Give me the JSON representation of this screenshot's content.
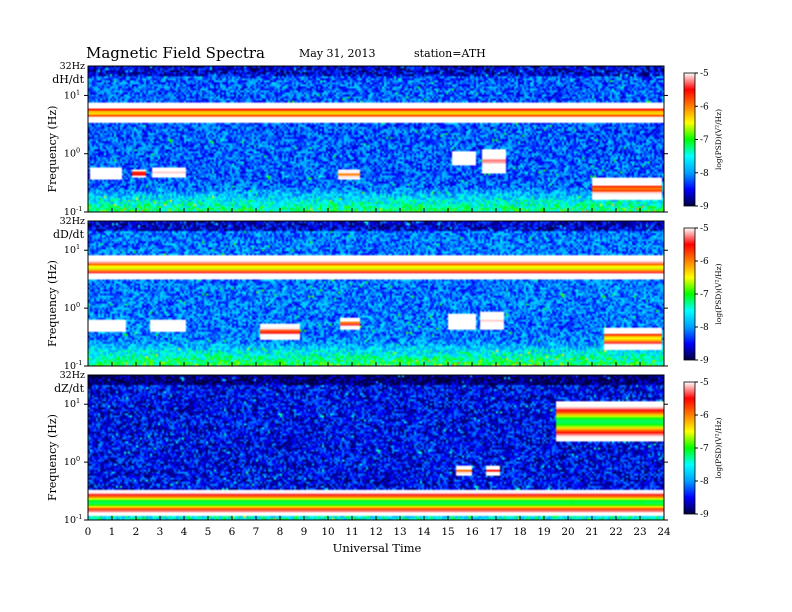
{
  "header": {
    "title": "Magnetic  Field  Spectra",
    "date": "May 31, 2013",
    "station": "station=ATH"
  },
  "chart_data": {
    "type": "heatmap",
    "xlabel": "Universal Time",
    "ylabel": "Frequency  (Hz)",
    "x_ticks": [
      "0",
      "1",
      "2",
      "3",
      "4",
      "5",
      "6",
      "7",
      "8",
      "9",
      "10",
      "11",
      "12",
      "13",
      "14",
      "15",
      "16",
      "17",
      "18",
      "19",
      "20",
      "21",
      "22",
      "23",
      "24"
    ],
    "xlim": [
      0,
      24
    ],
    "y_scale": "log",
    "ylim_hz": [
      0.1,
      32
    ],
    "y_tick_labels": {
      "top": "32Hz",
      "upper": {
        "base": "10",
        "exp": "1"
      },
      "middle": {
        "base": "10",
        "exp": "0"
      },
      "bottom": {
        "base": "10",
        "exp": "-1"
      }
    },
    "colorbar": {
      "label": "log(PSD)(V²/Hz)",
      "range": [
        -9,
        -5
      ],
      "ticks": [
        "-5",
        "-6",
        "-7",
        "-8",
        "-9"
      ],
      "colors": [
        "#000040",
        "#0000ff",
        "#00a0ff",
        "#00ffff",
        "#00ff00",
        "#ffff00",
        "#ff8000",
        "#ff0000",
        "#ffffff"
      ]
    },
    "panels": [
      {
        "component": "dH/dt",
        "background_level": -8.2,
        "top_band_level": -8.6,
        "features": [
          {
            "t0": 0.0,
            "t1": 24.0,
            "f_hz": 5.0,
            "level": -6.4,
            "bw": 0.09
          },
          {
            "t0": 0.1,
            "t1": 1.4,
            "f_hz": 0.46,
            "level": -5.0,
            "bw": 0.05
          },
          {
            "t0": 1.8,
            "t1": 2.4,
            "f_hz": 0.46,
            "level": -6.0,
            "bw": 0.04
          },
          {
            "t0": 2.7,
            "t1": 4.1,
            "f_hz": 0.48,
            "level": -5.1,
            "bw": 0.05
          },
          {
            "t0": 10.4,
            "t1": 11.3,
            "f_hz": 0.44,
            "level": -6.0,
            "bw": 0.05
          },
          {
            "t0": 15.2,
            "t1": 16.2,
            "f_hz": 0.85,
            "level": -5.0,
            "bw": 0.06
          },
          {
            "t0": 16.4,
            "t1": 17.4,
            "f_hz": 0.75,
            "level": -5.3,
            "bw": 0.1
          },
          {
            "t0": 21.0,
            "t1": 23.9,
            "f_hz": 0.25,
            "level": -6.0,
            "bw": 0.1
          }
        ]
      },
      {
        "component": "dD/dt",
        "background_level": -8.1,
        "top_band_level": -8.6,
        "features": [
          {
            "t0": 0.0,
            "t1": 24.0,
            "f_hz": 5.0,
            "level": -6.6,
            "bw": 0.1
          },
          {
            "t0": 0.0,
            "t1": 1.6,
            "f_hz": 0.5,
            "level": -5.1,
            "bw": 0.05
          },
          {
            "t0": 2.6,
            "t1": 4.1,
            "f_hz": 0.5,
            "level": -5.0,
            "bw": 0.05
          },
          {
            "t0": 7.2,
            "t1": 8.8,
            "f_hz": 0.4,
            "level": -5.8,
            "bw": 0.07
          },
          {
            "t0": 10.5,
            "t1": 11.3,
            "f_hz": 0.55,
            "level": -6.0,
            "bw": 0.05
          },
          {
            "t0": 15.0,
            "t1": 16.2,
            "f_hz": 0.6,
            "level": -5.0,
            "bw": 0.07
          },
          {
            "t0": 16.3,
            "t1": 17.3,
            "f_hz": 0.6,
            "level": -5.1,
            "bw": 0.08
          },
          {
            "t0": 21.5,
            "t1": 23.9,
            "f_hz": 0.3,
            "level": -6.5,
            "bw": 0.1
          }
        ]
      },
      {
        "component": "dZ/dt",
        "background_level": -8.5,
        "top_band_level": -8.9,
        "features": [
          {
            "t0": 0.0,
            "t1": 24.0,
            "f_hz": 0.2,
            "level": -7.2,
            "bw": 0.12
          },
          {
            "t0": 15.3,
            "t1": 16.0,
            "f_hz": 0.7,
            "level": -6.0,
            "bw": 0.04
          },
          {
            "t0": 16.6,
            "t1": 17.2,
            "f_hz": 0.72,
            "level": -5.6,
            "bw": 0.04
          },
          {
            "t0": 19.5,
            "t1": 24.0,
            "f_hz": 5.0,
            "level": -7.2,
            "bw": 0.18
          }
        ]
      }
    ]
  }
}
